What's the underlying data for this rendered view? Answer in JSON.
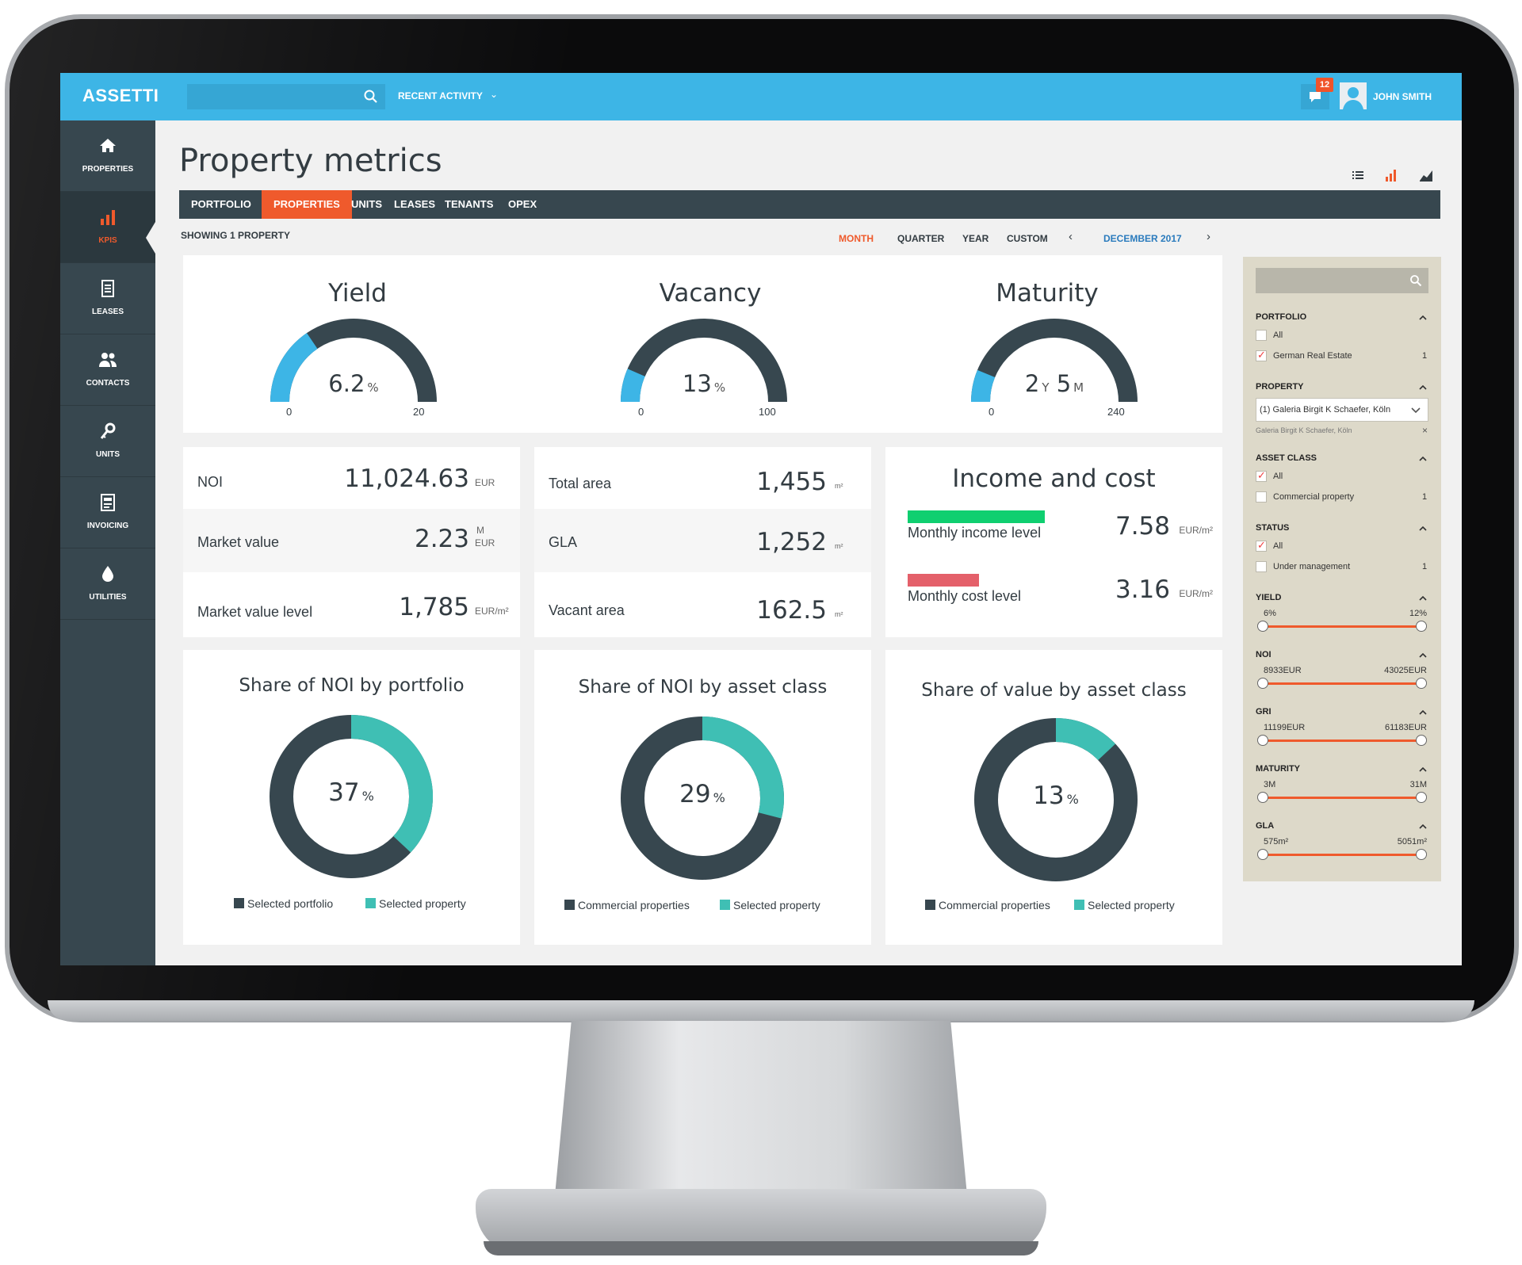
{
  "app": {
    "logo": "ASSETTI",
    "recent_activity": "RECENT ACTIVITY",
    "notification_count": "12",
    "user_name": "JOHN SMITH",
    "accent": "#ef5a2c",
    "topbar_color": "#3db5e6",
    "sidebar_color": "#37474f"
  },
  "sidebar": {
    "items": [
      {
        "label": "PROPERTIES",
        "icon": "home-icon"
      },
      {
        "label": "KPIS",
        "icon": "bar-chart-icon",
        "active": true
      },
      {
        "label": "LEASES",
        "icon": "document-icon"
      },
      {
        "label": "CONTACTS",
        "icon": "people-icon"
      },
      {
        "label": "UNITS",
        "icon": "key-icon"
      },
      {
        "label": "INVOICING",
        "icon": "invoice-icon"
      },
      {
        "label": "UTILITIES",
        "icon": "drop-icon"
      }
    ]
  },
  "page": {
    "title": "Property metrics",
    "tabs": [
      "PORTFOLIO",
      "PROPERTIES",
      "UNITS",
      "LEASES",
      "TENANTS",
      "OPEX"
    ],
    "active_tab": "PROPERTIES",
    "showing": "SHOWING 1 PROPERTY",
    "periods": [
      "MONTH",
      "QUARTER",
      "YEAR",
      "CUSTOM"
    ],
    "active_period": "MONTH",
    "period_date": "DECEMBER 2017",
    "prev_arrow": "‹",
    "next_arrow": "›"
  },
  "gauges": [
    {
      "title": "Yield",
      "value": "6.2",
      "unit": "%",
      "min": "0",
      "max": "20",
      "fraction": 0.31
    },
    {
      "title": "Vacancy",
      "value": "13",
      "unit": "%",
      "min": "0",
      "max": "100",
      "fraction": 0.13
    },
    {
      "title": "Maturity",
      "value_y": "2",
      "unit_y": "Y",
      "value_m": "5",
      "unit_m": "M",
      "min": "0",
      "max": "240",
      "fraction": 0.125
    }
  ],
  "financials": {
    "rows": [
      {
        "label": "NOI",
        "value": "11,024.63",
        "unit": "EUR"
      },
      {
        "label": "Market value",
        "value": "2.23",
        "unit_top": "M",
        "unit": "EUR"
      },
      {
        "label": "Market value level",
        "value": "1,785",
        "unit": "EUR/m²"
      }
    ]
  },
  "areas": {
    "rows": [
      {
        "label": "Total area",
        "value": "1,455",
        "unit": "m²"
      },
      {
        "label": "GLA",
        "value": "1,252",
        "unit": "m²"
      },
      {
        "label": "Vacant area",
        "value": "162.5",
        "unit": "m²"
      }
    ]
  },
  "income_cost": {
    "title": "Income and cost",
    "income": {
      "label": "Monthly income level",
      "value": "7.58",
      "unit": "EUR/m²",
      "color": "#0fcf70",
      "level": 0.71
    },
    "cost": {
      "label": "Monthly cost level",
      "value": "3.16",
      "unit": "EUR/m²",
      "color": "#e4606a",
      "level": 0.37
    }
  },
  "donuts": [
    {
      "title": "Share of NOI by portfolio",
      "percent": 37,
      "center": "37",
      "unit": "%",
      "legend": [
        {
          "label": "Selected portfolio",
          "color": "#37474f"
        },
        {
          "label": "Selected property",
          "color": "#3fbfb4"
        }
      ]
    },
    {
      "title": "Share of NOI by asset class",
      "percent": 29,
      "center": "29",
      "unit": "%",
      "legend": [
        {
          "label": "Commercial properties",
          "color": "#37474f"
        },
        {
          "label": "Selected property",
          "color": "#3fbfb4"
        }
      ]
    },
    {
      "title": "Share of value by asset class",
      "percent": 13,
      "center": "13",
      "unit": "%",
      "legend": [
        {
          "label": "Commercial properties",
          "color": "#37474f"
        },
        {
          "label": "Selected property",
          "color": "#3fbfb4"
        }
      ]
    }
  ],
  "filters": {
    "portfolio": {
      "label": "PORTFOLIO",
      "options": [
        {
          "label": "All",
          "checked": false,
          "count": ""
        },
        {
          "label": "German Real Estate",
          "checked": true,
          "count": "1"
        }
      ]
    },
    "property": {
      "label": "PROPERTY",
      "selected": "(1) Galeria Birgit K Schaefer, Köln",
      "chip": "Galeria Birgit K Schaefer, Köln",
      "chip_remove": "×"
    },
    "asset_class": {
      "label": "ASSET CLASS",
      "options": [
        {
          "label": "All",
          "checked": true,
          "count": ""
        },
        {
          "label": "Commercial property",
          "checked": false,
          "count": "1"
        }
      ]
    },
    "status": {
      "label": "STATUS",
      "options": [
        {
          "label": "All",
          "checked": true,
          "count": ""
        },
        {
          "label": "Under management",
          "checked": false,
          "count": "1"
        }
      ]
    },
    "sliders": [
      {
        "label": "YIELD",
        "min": "6%",
        "max": "12%"
      },
      {
        "label": "NOI",
        "min": "8933EUR",
        "max": "43025EUR"
      },
      {
        "label": "GRI",
        "min": "11199EUR",
        "max": "61183EUR"
      },
      {
        "label": "MATURITY",
        "min": "3M",
        "max": "31M"
      },
      {
        "label": "GLA",
        "min": "575m²",
        "max": "5051m²"
      }
    ]
  }
}
